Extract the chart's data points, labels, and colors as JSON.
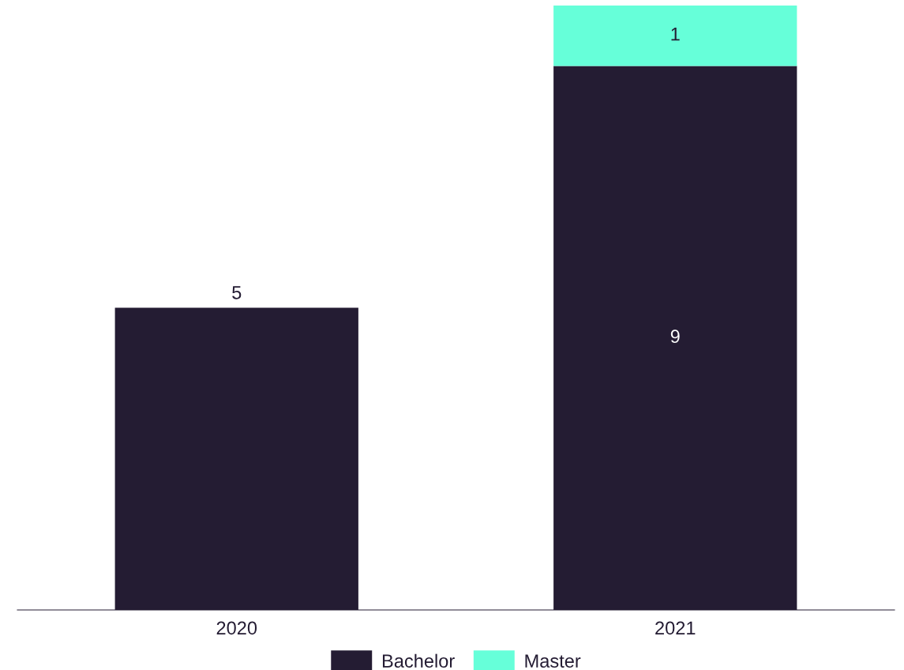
{
  "chart_data": {
    "type": "bar",
    "stacked": true,
    "data_labels": true,
    "legend": "bottom",
    "grid": false,
    "categories": [
      "2020",
      "2021"
    ],
    "series": [
      {
        "name": "Bachelor",
        "color": "#241c33",
        "values": [
          5,
          9
        ]
      },
      {
        "name": "Master",
        "color": "#66ffd9",
        "values": [
          null,
          1
        ]
      }
    ]
  }
}
